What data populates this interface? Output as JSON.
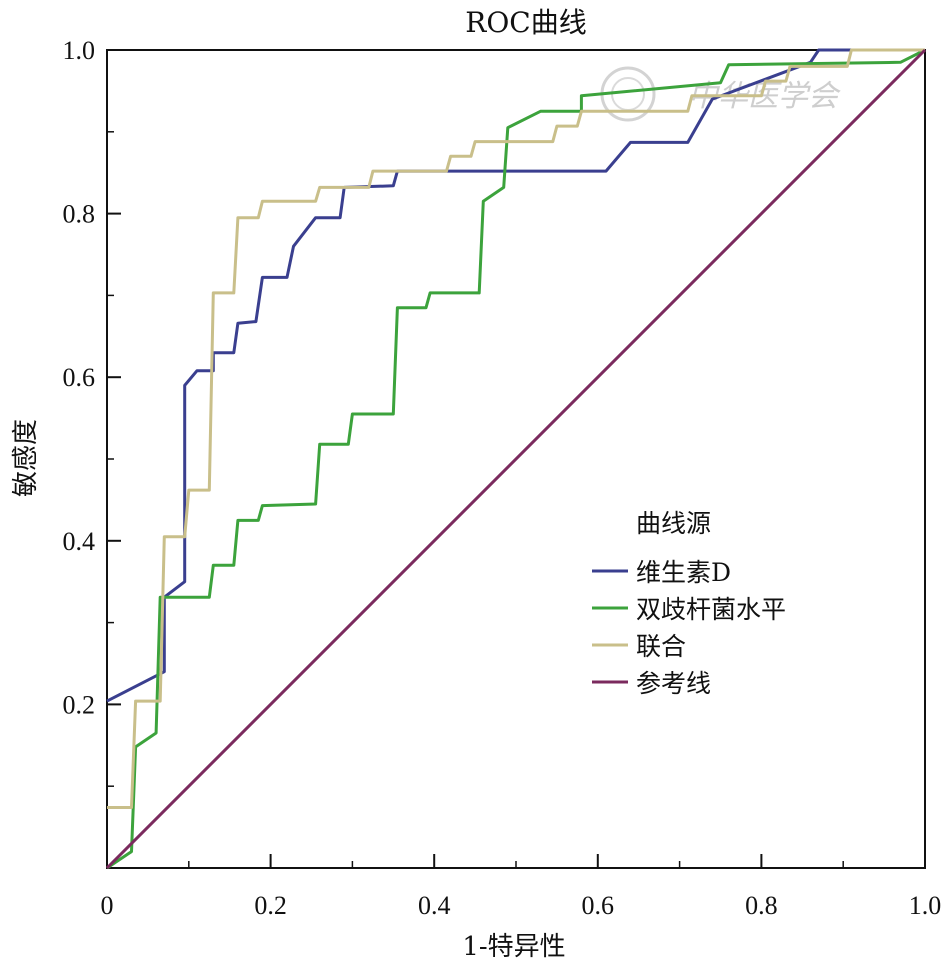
{
  "chart_data": {
    "type": "line",
    "title": "ROC曲线",
    "xlabel": "1-特异性",
    "ylabel": "敏感度",
    "xlim": [
      0,
      1
    ],
    "ylim": [
      0,
      1
    ],
    "x_ticks": [
      "0",
      "0.2",
      "0.4",
      "0.6",
      "0.8",
      "1.0"
    ],
    "y_ticks": [
      "0.2",
      "0.4",
      "0.6",
      "0.8",
      "1.0"
    ],
    "legend_title": "曲线源",
    "legend_position": "center-right",
    "grid": false,
    "watermark": "中华医学会",
    "series": [
      {
        "name": "维生素D",
        "color": "#3a3f8f",
        "points": [
          [
            0,
            0.204
          ],
          [
            0.07,
            0.24
          ],
          [
            0.07,
            0.331
          ],
          [
            0.095,
            0.35
          ],
          [
            0.095,
            0.59
          ],
          [
            0.11,
            0.608
          ],
          [
            0.13,
            0.608
          ],
          [
            0.13,
            0.63
          ],
          [
            0.155,
            0.63
          ],
          [
            0.16,
            0.666
          ],
          [
            0.182,
            0.668
          ],
          [
            0.19,
            0.722
          ],
          [
            0.22,
            0.722
          ],
          [
            0.228,
            0.76
          ],
          [
            0.255,
            0.795
          ],
          [
            0.285,
            0.795
          ],
          [
            0.29,
            0.832
          ],
          [
            0.35,
            0.834
          ],
          [
            0.355,
            0.852
          ],
          [
            0.61,
            0.852
          ],
          [
            0.64,
            0.887
          ],
          [
            0.71,
            0.887
          ],
          [
            0.74,
            0.94
          ],
          [
            0.86,
            0.985
          ],
          [
            0.87,
            1.0
          ],
          [
            1.0,
            1.0
          ]
        ]
      },
      {
        "name": "双歧杆菌水平",
        "color": "#3ca33c",
        "points": [
          [
            0,
            0
          ],
          [
            0.03,
            0.02
          ],
          [
            0.035,
            0.148
          ],
          [
            0.06,
            0.165
          ],
          [
            0.065,
            0.331
          ],
          [
            0.125,
            0.331
          ],
          [
            0.13,
            0.37
          ],
          [
            0.155,
            0.37
          ],
          [
            0.16,
            0.425
          ],
          [
            0.185,
            0.425
          ],
          [
            0.19,
            0.443
          ],
          [
            0.255,
            0.445
          ],
          [
            0.26,
            0.518
          ],
          [
            0.295,
            0.518
          ],
          [
            0.3,
            0.555
          ],
          [
            0.35,
            0.555
          ],
          [
            0.355,
            0.685
          ],
          [
            0.39,
            0.685
          ],
          [
            0.395,
            0.703
          ],
          [
            0.455,
            0.703
          ],
          [
            0.46,
            0.815
          ],
          [
            0.485,
            0.832
          ],
          [
            0.49,
            0.905
          ],
          [
            0.53,
            0.925
          ],
          [
            0.58,
            0.925
          ],
          [
            0.58,
            0.944
          ],
          [
            0.75,
            0.96
          ],
          [
            0.76,
            0.982
          ],
          [
            0.97,
            0.985
          ],
          [
            1.0,
            1.0
          ]
        ]
      },
      {
        "name": "联合",
        "color": "#c9bf8a",
        "points": [
          [
            0,
            0.074
          ],
          [
            0.03,
            0.074
          ],
          [
            0.035,
            0.204
          ],
          [
            0.065,
            0.204
          ],
          [
            0.07,
            0.405
          ],
          [
            0.095,
            0.405
          ],
          [
            0.1,
            0.462
          ],
          [
            0.125,
            0.462
          ],
          [
            0.13,
            0.703
          ],
          [
            0.155,
            0.703
          ],
          [
            0.16,
            0.795
          ],
          [
            0.185,
            0.795
          ],
          [
            0.19,
            0.815
          ],
          [
            0.255,
            0.815
          ],
          [
            0.26,
            0.832
          ],
          [
            0.32,
            0.832
          ],
          [
            0.325,
            0.852
          ],
          [
            0.415,
            0.852
          ],
          [
            0.42,
            0.87
          ],
          [
            0.445,
            0.87
          ],
          [
            0.45,
            0.888
          ],
          [
            0.545,
            0.888
          ],
          [
            0.55,
            0.907
          ],
          [
            0.575,
            0.907
          ],
          [
            0.58,
            0.925
          ],
          [
            0.71,
            0.925
          ],
          [
            0.715,
            0.944
          ],
          [
            0.8,
            0.944
          ],
          [
            0.805,
            0.962
          ],
          [
            0.83,
            0.962
          ],
          [
            0.835,
            0.98
          ],
          [
            0.905,
            0.98
          ],
          [
            0.91,
            1.0
          ],
          [
            1.0,
            1.0
          ]
        ]
      },
      {
        "name": "参考线",
        "color": "#7b2a5e",
        "points": [
          [
            0,
            0
          ],
          [
            1,
            1
          ]
        ]
      }
    ]
  }
}
